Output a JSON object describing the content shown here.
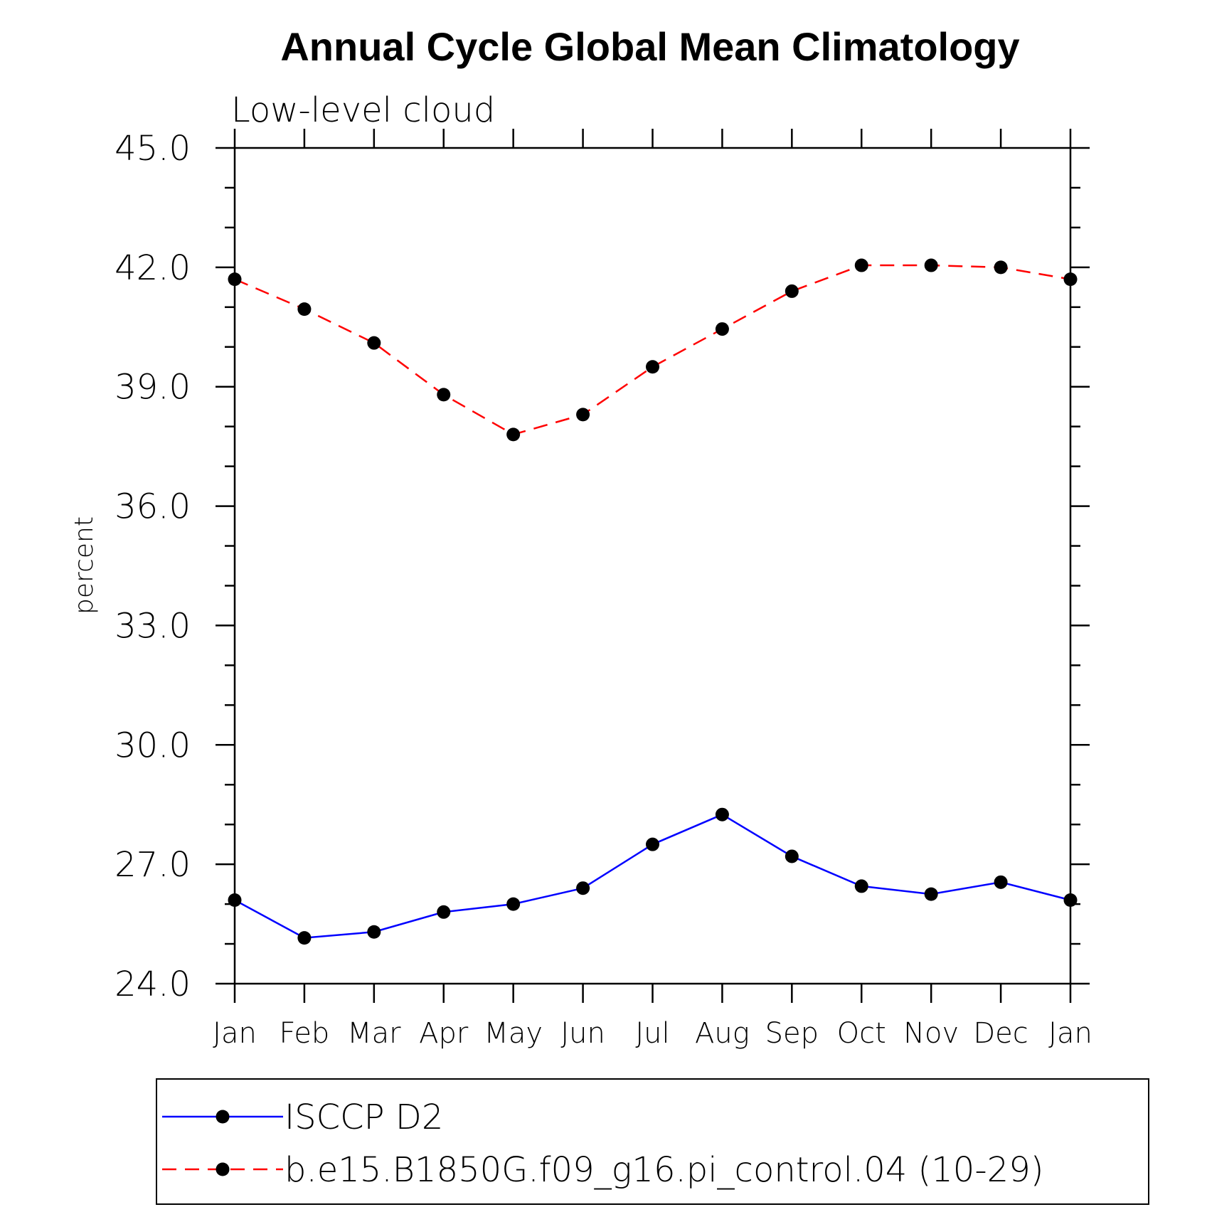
{
  "chart_data": {
    "type": "line",
    "title": "Annual Cycle Global Mean Climatology",
    "subtitle": "Low-level cloud",
    "xlabel": "",
    "ylabel": "percent",
    "categories": [
      "Jan",
      "Feb",
      "Mar",
      "Apr",
      "May",
      "Jun",
      "Jul",
      "Aug",
      "Sep",
      "Oct",
      "Nov",
      "Dec",
      "Jan"
    ],
    "ylim": [
      24.0,
      45.0
    ],
    "yticks": [
      "24.0",
      "27.0",
      "30.0",
      "33.0",
      "36.0",
      "39.0",
      "42.0",
      "45.0"
    ],
    "legend_position": "bottom",
    "grid": false,
    "series": [
      {
        "name": "ISCCP D2",
        "color": "#0000ff",
        "line_style": "solid",
        "marker": "filled-circle",
        "values": [
          26.1,
          25.15,
          25.3,
          25.8,
          26.0,
          26.4,
          27.5,
          28.25,
          27.2,
          26.45,
          26.25,
          26.55,
          26.1
        ]
      },
      {
        "name": "b.e15.B1850G.f09_g16.pi_control.04 (10-29)",
        "color": "#ff0000",
        "line_style": "dashed",
        "marker": "filled-circle",
        "values": [
          41.7,
          40.95,
          40.1,
          38.8,
          37.8,
          38.3,
          39.5,
          40.45,
          41.4,
          42.05,
          42.05,
          42.0,
          41.7
        ]
      }
    ]
  }
}
